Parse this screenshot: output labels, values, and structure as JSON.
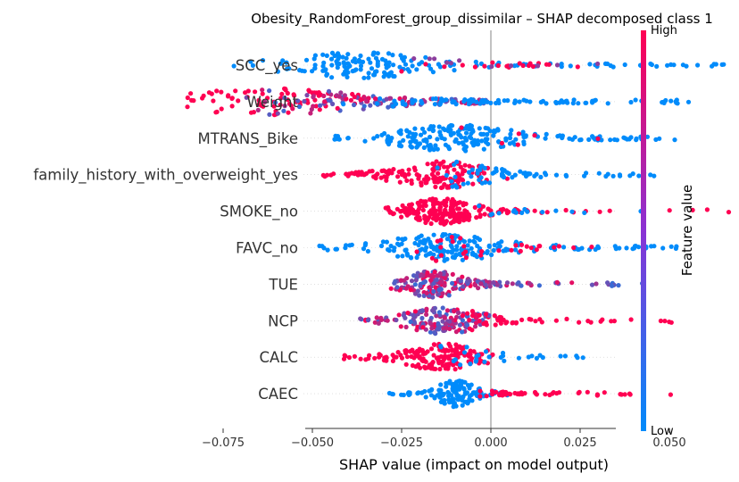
{
  "chart_data": {
    "type": "scatter",
    "subtype": "shap-beeswarm",
    "title": "Obesity_RandomForest_group_dissimilar – SHAP decomposed class 1",
    "xlabel": "SHAP value (impact on model output)",
    "ylabel": "",
    "xlim": [
      -0.09,
      0.07
    ],
    "xticks": [
      -0.075,
      -0.05,
      -0.025,
      0.0,
      0.025,
      0.05
    ],
    "xtick_labels": [
      "−0.075",
      "−0.050",
      "−0.025",
      "0.000",
      "0.025",
      "0.050"
    ],
    "colorbar": {
      "title": "Feature value",
      "high_label": "High",
      "low_label": "Low",
      "low_color": "#008bfb",
      "high_color": "#ff0052"
    },
    "zero_line_color": "#999999",
    "grid": false,
    "features": [
      {
        "name": "SCC_yes",
        "range": [
          -0.078,
          0.067
        ],
        "peak": -0.037,
        "spread": 0.022,
        "clusters": [
          {
            "from": -0.078,
            "to": 0.067,
            "color": "low",
            "n": 170
          },
          {
            "from": -0.005,
            "to": 0.025,
            "color": "high",
            "n": 20
          },
          {
            "from": 0.0,
            "to": 0.03,
            "color": "mid",
            "n": 12
          }
        ]
      },
      {
        "name": "Weight",
        "range": [
          -0.085,
          0.058
        ],
        "peak": -0.063,
        "spread": 0.03,
        "clusters": [
          {
            "from": -0.085,
            "to": -0.045,
            "color": "high",
            "n": 80
          },
          {
            "from": -0.045,
            "to": 0.0,
            "color": "mixed",
            "n": 120
          },
          {
            "from": -0.01,
            "to": 0.058,
            "color": "low",
            "n": 90
          }
        ]
      },
      {
        "name": "MTRANS_Bike",
        "range": [
          -0.045,
          0.052
        ],
        "peak": -0.01,
        "spread": 0.018,
        "clusters": [
          {
            "from": -0.045,
            "to": 0.052,
            "color": "low",
            "n": 210
          },
          {
            "from": 0.0,
            "to": 0.04,
            "color": "high",
            "n": 6
          }
        ]
      },
      {
        "name": "family_history_with_overweight_yes",
        "range": [
          -0.047,
          0.05
        ],
        "peak": -0.013,
        "spread": 0.015,
        "clusters": [
          {
            "from": -0.047,
            "to": -0.002,
            "color": "high",
            "n": 150
          },
          {
            "from": -0.002,
            "to": 0.05,
            "color": "low",
            "n": 70
          }
        ]
      },
      {
        "name": "SMOKE_no",
        "range": [
          -0.03,
          0.067
        ],
        "peak": -0.014,
        "spread": 0.01,
        "clusters": [
          {
            "from": -0.03,
            "to": 0.0,
            "color": "high",
            "n": 180
          },
          {
            "from": 0.005,
            "to": 0.067,
            "color": "high",
            "n": 30
          },
          {
            "from": 0.005,
            "to": 0.05,
            "color": "low",
            "n": 15
          }
        ]
      },
      {
        "name": "FAVC_no",
        "range": [
          -0.048,
          0.052
        ],
        "peak": -0.013,
        "spread": 0.018,
        "clusters": [
          {
            "from": -0.048,
            "to": 0.052,
            "color": "low",
            "n": 200
          },
          {
            "from": -0.01,
            "to": 0.03,
            "color": "high",
            "n": 30
          }
        ]
      },
      {
        "name": "TUE",
        "range": [
          -0.028,
          0.045
        ],
        "peak": -0.016,
        "spread": 0.009,
        "clusters": [
          {
            "from": -0.028,
            "to": 0.0,
            "color": "mixed",
            "n": 150
          },
          {
            "from": 0.0,
            "to": 0.045,
            "color": "mixed",
            "n": 50
          }
        ]
      },
      {
        "name": "NCP",
        "range": [
          -0.037,
          0.052
        ],
        "peak": -0.013,
        "spread": 0.012,
        "clusters": [
          {
            "from": -0.037,
            "to": 0.0,
            "color": "mixed",
            "n": 160
          },
          {
            "from": 0.0,
            "to": 0.052,
            "color": "high",
            "n": 50
          }
        ]
      },
      {
        "name": "CALC",
        "range": [
          -0.042,
          0.026
        ],
        "peak": -0.013,
        "spread": 0.012,
        "clusters": [
          {
            "from": -0.042,
            "to": 0.0,
            "color": "high",
            "n": 170
          },
          {
            "from": -0.005,
            "to": 0.026,
            "color": "low",
            "n": 30
          }
        ]
      },
      {
        "name": "CAEC",
        "range": [
          -0.03,
          0.052
        ],
        "peak": -0.01,
        "spread": 0.006,
        "clusters": [
          {
            "from": -0.03,
            "to": 0.005,
            "color": "low",
            "n": 140
          },
          {
            "from": 0.005,
            "to": 0.04,
            "color": "high",
            "n": 50
          },
          {
            "from": 0.05,
            "to": 0.052,
            "color": "high",
            "n": 1
          }
        ]
      }
    ]
  }
}
